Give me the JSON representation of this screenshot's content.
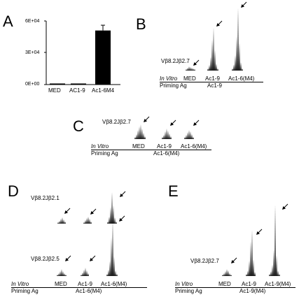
{
  "panels": {
    "A": {
      "letter": "A",
      "chart_data": {
        "type": "bar",
        "categories": [
          "MED",
          "AC1-9",
          "Ac1-6M4"
        ],
        "values": [
          1000,
          1000,
          51000
        ],
        "error": [
          0,
          0,
          5000
        ],
        "yticks": [
          "0E+00",
          "3E+04",
          "6E+04"
        ],
        "ylim": [
          0,
          60000
        ],
        "color": "#000000"
      }
    },
    "B": {
      "letter": "B",
      "probe": "Vβ8.2Jβ2.7",
      "in_vitro_label": "In Vitro",
      "priming_label": "Priming Ag",
      "lanes": [
        "MED",
        "Ac1-9",
        "Ac1-6(M4)"
      ],
      "priming_value": "Ac1-9"
    },
    "C": {
      "letter": "C",
      "probe": "Vβ8.2Jβ2.7",
      "in_vitro_label": "In Vitro",
      "priming_label": "Priming Ag",
      "lanes": [
        "MED",
        "Ac1-9",
        "Ac1-6(M4)"
      ],
      "priming_value": "Ac1-6(M4)"
    },
    "D": {
      "letter": "D",
      "probe_top": "Vβ8.2Jβ2.1",
      "probe_bottom": "Vβ8.2Jβ2.5",
      "in_vitro_label": "In Vitro",
      "priming_label": "Priming Ag",
      "lanes": [
        "MED",
        "Ac1-9",
        "Ac1-6(M4)"
      ],
      "priming_value": "Ac1-6(M4)"
    },
    "E": {
      "letter": "E",
      "probe": "Vβ8.2Jβ2.7",
      "in_vitro_label": "In Vitro",
      "priming_label": "Priming Ag",
      "lanes": [
        "MED",
        "Ac1-9",
        "Ac1-9(M4)"
      ],
      "priming_value": "Ac1-9(M4)"
    }
  }
}
